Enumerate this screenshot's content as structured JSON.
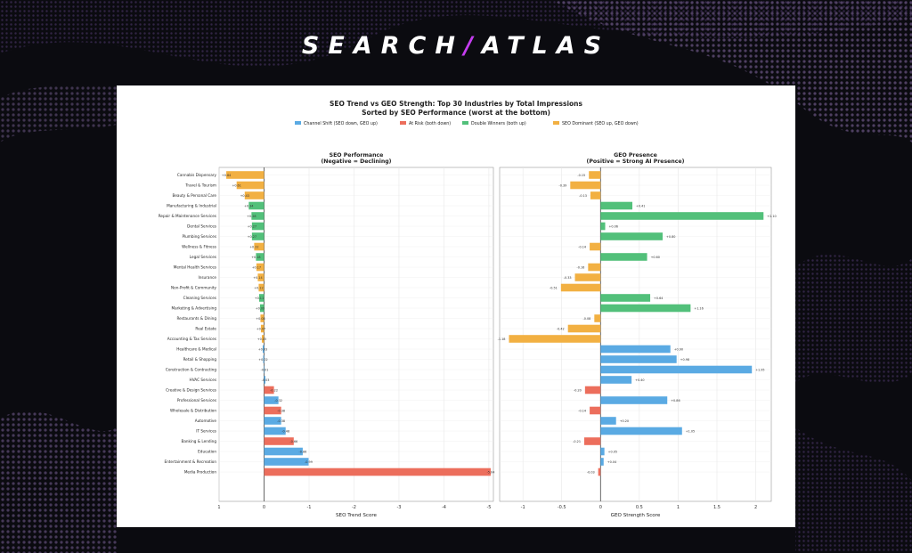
{
  "brand": {
    "left": "SEARCH",
    "slash": "/",
    "right": "ATLAS"
  },
  "colors": {
    "channel_shift": "#5aaae3",
    "at_risk": "#ec6e5c",
    "double_winners": "#52c07a",
    "seo_dominant": "#f2b042",
    "background": "#0b0b10",
    "accent": "#c53df0"
  },
  "chart_data": {
    "type": "bar",
    "title": "SEO Trend vs GEO Strength: Top 30 Industries by Total Impressions",
    "subtitle": "Sorted by SEO Performance (worst at the bottom)",
    "legend": {
      "placement": "top-center",
      "entries": [
        {
          "key": "channel_shift",
          "label": "Channel Shift (SEO down, GEO up)"
        },
        {
          "key": "at_risk",
          "label": "At Risk (both down)"
        },
        {
          "key": "double_winners",
          "label": "Double Winners (both up)"
        },
        {
          "key": "seo_dominant",
          "label": "SEO Dominant (SEO up, GEO down)"
        }
      ]
    },
    "categories": [
      "Cannabis Dispensary",
      "Travel & Tourism",
      "Beauty & Personal Care",
      "Manufacturing & Industrial",
      "Repair & Maintenance Services",
      "Dental Services",
      "Plumbing Services",
      "Wellness & Fitness",
      "Legal Services",
      "Mental Health Services",
      "Insurance",
      "Non-Profit & Community",
      "Cleaning Services",
      "Marketing & Advertising",
      "Restaurants & Dining",
      "Real Estate",
      "Accounting & Tax Services",
      "Healthcare & Medical",
      "Retail & Shopping",
      "Construction & Contracting",
      "HVAC Services",
      "Creative & Design Services",
      "Professional Services",
      "Wholesale & Distribution",
      "Automotive",
      "IT Services",
      "Banking & Lending",
      "Education",
      "Entertainment & Recreation",
      "Media Production"
    ],
    "groups": [
      "seo_dominant",
      "seo_dominant",
      "seo_dominant",
      "double_winners",
      "double_winners",
      "double_winners",
      "double_winners",
      "seo_dominant",
      "double_winners",
      "seo_dominant",
      "seo_dominant",
      "seo_dominant",
      "double_winners",
      "double_winners",
      "seo_dominant",
      "seo_dominant",
      "seo_dominant",
      "channel_shift",
      "channel_shift",
      "channel_shift",
      "channel_shift",
      "at_risk",
      "channel_shift",
      "at_risk",
      "channel_shift",
      "channel_shift",
      "at_risk",
      "channel_shift",
      "channel_shift",
      "at_risk"
    ],
    "panels": [
      {
        "title": "SEO Performance",
        "subtitle": "(Negative = Declining)",
        "xlabel": "SEO Trend Score",
        "xlim": [
          1.0,
          -5.1
        ],
        "xticks": [
          1,
          0,
          -1,
          -2,
          -3,
          -4,
          -5
        ],
        "values": [
          0.84,
          0.61,
          0.43,
          0.34,
          0.28,
          0.27,
          0.27,
          0.22,
          0.18,
          0.17,
          0.14,
          0.12,
          0.11,
          0.09,
          0.08,
          0.07,
          0.05,
          0.03,
          0.02,
          -0.01,
          -0.03,
          -0.22,
          -0.32,
          -0.38,
          -0.38,
          -0.48,
          -0.66,
          -0.86,
          -0.99,
          -5.04
        ],
        "labels": [
          "+0.84",
          "+0.61",
          "+0.43",
          "+0.34",
          "+0.28",
          "+0.27",
          "+0.27",
          "+0.22",
          "+0.18",
          "+0.17",
          "+0.14",
          "+0.12",
          "+0.11",
          "+0.09",
          "+0.08",
          "+0.07",
          "+0.05",
          "+0.03",
          "+0.02",
          "-0.01",
          "-0.03",
          "-0.22",
          "-0.32",
          "-0.38",
          "-0.38",
          "-0.48",
          "-0.66",
          "-0.86",
          "-0.99",
          "-5.04"
        ]
      },
      {
        "title": "GEO Presence",
        "subtitle": "(Positive = Strong AI Presence)",
        "xlabel": "GEO Strength Score",
        "xlim": [
          -1.3,
          2.2
        ],
        "xticks": [
          -1.0,
          -0.5,
          0.0,
          0.5,
          1.0,
          1.5,
          2.0
        ],
        "values": [
          -0.15,
          -0.39,
          -0.13,
          0.41,
          2.1,
          0.06,
          0.8,
          -0.14,
          0.6,
          -0.16,
          -0.33,
          -0.51,
          0.64,
          1.16,
          -0.08,
          -0.42,
          -1.18,
          0.9,
          0.98,
          1.95,
          0.4,
          -0.2,
          0.86,
          -0.14,
          0.2,
          1.05,
          -0.21,
          0.05,
          0.04,
          -0.03
        ],
        "labels": [
          "-0.15",
          "-0.39",
          "-0.13",
          "+0.41",
          "+2.10",
          "+0.06",
          "+0.80",
          "-0.14",
          "+0.60",
          "-0.16",
          "-0.33",
          "-0.51",
          "+0.64",
          "+1.16",
          "-0.08",
          "-0.42",
          "-1.18",
          "+0.90",
          "+0.98",
          "+1.95",
          "+0.40",
          "-0.20",
          "+0.86",
          "-0.14",
          "+0.20",
          "+1.05",
          "-0.21",
          "+0.05",
          "+0.04",
          "-0.03"
        ]
      }
    ],
    "grid": true
  }
}
